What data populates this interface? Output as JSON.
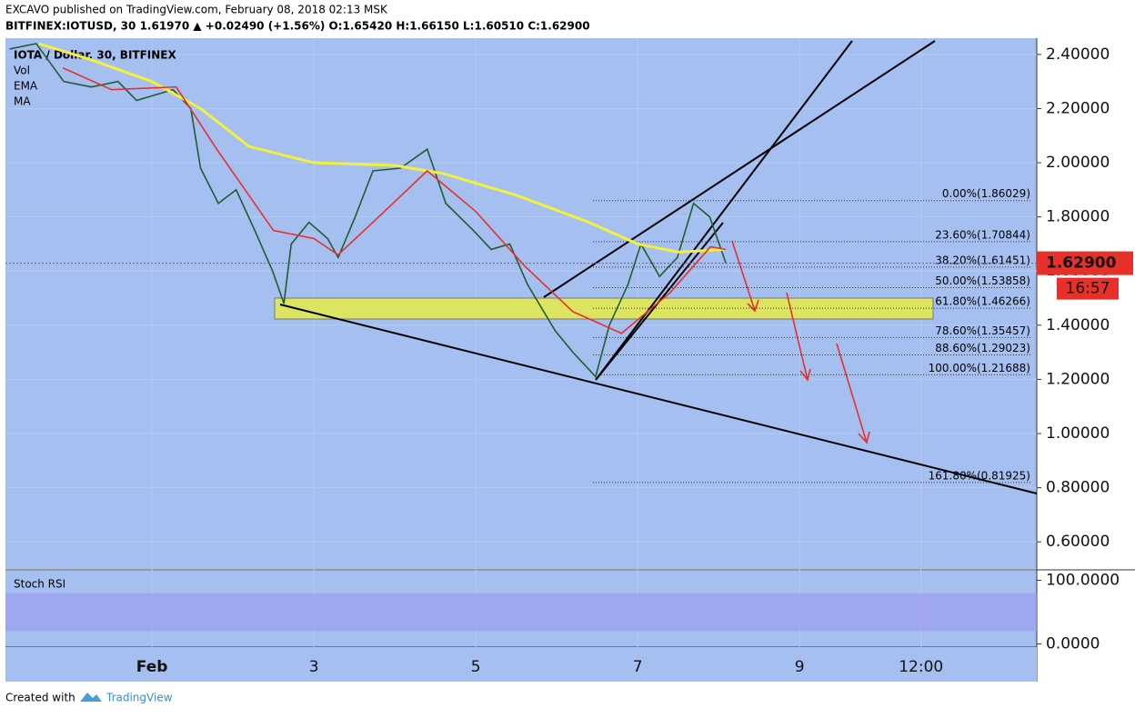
{
  "header": {
    "line1": "EXCAVO published on TradingView.com, February 08, 2018 02:13 MSK",
    "line2": "BITFINEX:IOTUSD, 30  1.61970 ▲ +0.02490 (+1.56%) O:1.65420 H:1.66150 L:1.60510 C:1.62900"
  },
  "footer": {
    "created": "Created with",
    "brand": "TradingView"
  },
  "chart_data": {
    "type": "line",
    "legend": [
      "IOTA / Dollar, 30, BITFINEX",
      "Vol",
      "EMA",
      "MA"
    ],
    "xlim": [
      -0.81,
      11.93
    ],
    "ylim": [
      0.5,
      2.46
    ],
    "xticks": [
      {
        "value": 1,
        "label": "Feb"
      },
      3,
      5,
      7,
      9,
      {
        "value": 10.5,
        "label": "12:00"
      }
    ],
    "yticks": [
      {
        "value": 0.6,
        "label": "0.60000"
      },
      {
        "value": 0.8,
        "label": "0.80000"
      },
      {
        "value": 1.0,
        "label": "1.00000"
      },
      {
        "value": 1.2,
        "label": "1.20000"
      },
      {
        "value": 1.4,
        "label": "1.40000"
      },
      {
        "value": 1.6,
        "label": "1.60000"
      },
      {
        "value": 1.8,
        "label": "1.80000"
      },
      {
        "value": 2.0,
        "label": "2.00000"
      },
      {
        "value": 2.2,
        "label": "2.20000"
      },
      {
        "value": 2.4,
        "label": "2.40000"
      }
    ],
    "series": [
      {
        "name": "IOTA / Dollar",
        "color": "#1f5e2e",
        "x": [
          -0.76,
          -0.43,
          -0.09,
          0.25,
          0.58,
          0.81,
          1.26,
          1.48,
          1.6,
          1.82,
          2.04,
          2.27,
          2.49,
          2.63,
          2.72,
          2.94,
          3.17,
          3.3,
          3.51,
          3.73,
          4.07,
          4.4,
          4.63,
          4.97,
          5.19,
          5.42,
          5.64,
          5.98,
          6.2,
          6.48,
          6.65,
          6.88,
          7.04,
          7.27,
          7.49,
          7.69,
          7.89,
          8.09
        ],
        "values": [
          2.42,
          2.44,
          2.3,
          2.28,
          2.3,
          2.23,
          2.27,
          2.2,
          1.98,
          1.85,
          1.9,
          1.75,
          1.6,
          1.48,
          1.7,
          1.78,
          1.72,
          1.65,
          1.8,
          1.97,
          1.98,
          2.05,
          1.85,
          1.75,
          1.68,
          1.7,
          1.55,
          1.38,
          1.3,
          1.21,
          1.4,
          1.55,
          1.7,
          1.58,
          1.65,
          1.85,
          1.8,
          1.629
        ]
      },
      {
        "name": "EMA",
        "color": "#f5f03a",
        "x": [
          -0.4,
          0.25,
          1,
          1.6,
          2.2,
          3,
          4,
          4.6,
          5.5,
          6.4,
          7,
          7.5,
          8.09
        ],
        "values": [
          2.44,
          2.38,
          2.3,
          2.2,
          2.06,
          2.0,
          1.99,
          1.96,
          1.88,
          1.78,
          1.7,
          1.67,
          1.68
        ]
      },
      {
        "name": "MA",
        "color": "#e8302a",
        "x": [
          -0.1,
          0.5,
          1.3,
          1.8,
          2.5,
          3.0,
          3.3,
          3.8,
          4.4,
          5,
          5.6,
          6.2,
          6.8,
          7.4,
          7.9,
          8.09
        ],
        "values": [
          2.35,
          2.27,
          2.28,
          2.05,
          1.75,
          1.72,
          1.66,
          1.8,
          1.97,
          1.82,
          1.62,
          1.45,
          1.37,
          1.52,
          1.69,
          1.68
        ]
      }
    ],
    "fib_levels": [
      {
        "value": 1.86029,
        "label": "0.00%(1.86029)"
      },
      {
        "value": 1.70844,
        "label": "23.60%(1.70844)"
      },
      {
        "value": 1.61451,
        "label": "38.20%(1.61451)"
      },
      {
        "value": 1.53858,
        "label": "50.00%(1.53858)"
      },
      {
        "value": 1.46266,
        "label": "61.80%(1.46266)"
      },
      {
        "value": 1.35457,
        "label": "78.60%(1.35457)"
      },
      {
        "value": 1.29023,
        "label": "88.60%(1.29023)"
      },
      {
        "value": 1.21688,
        "label": "100.00%(1.21688)"
      },
      {
        "value": 0.81925,
        "label": "161.80%(0.81925)"
      }
    ],
    "last_price": {
      "value": 1.629,
      "label": "1.62900"
    },
    "countdown": "16:57",
    "rsi": {
      "name": "Stoch RSI",
      "ylim": [
        -5,
        115
      ],
      "yticks": [
        {
          "value": 100,
          "label": "100.0000"
        },
        {
          "value": 0,
          "label": "0.0000"
        }
      ]
    }
  }
}
